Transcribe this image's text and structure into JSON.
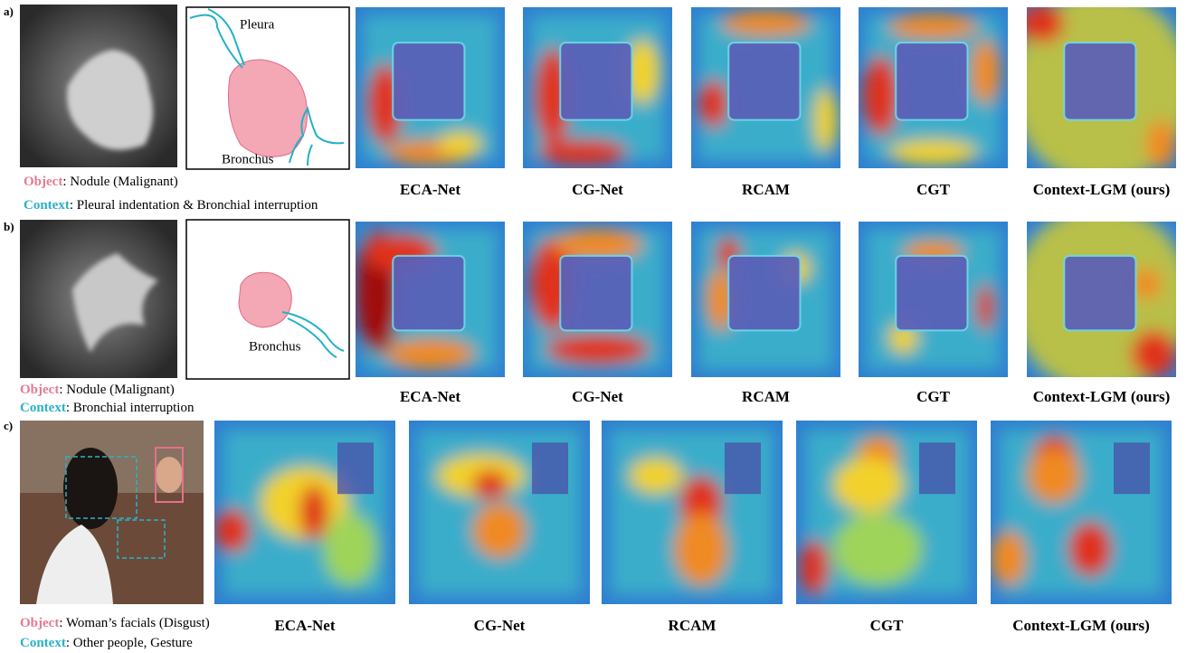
{
  "rows": [
    {
      "label": "a)",
      "object_key": "Object",
      "object_text": ": Nodule (Malignant)",
      "context_key": "Context",
      "context_text": ": Pleural indentation  & Bronchial interruption",
      "diagram_labels": [
        "Pleura",
        "Bronchus"
      ],
      "methods": [
        "ECA-Net",
        "CG-Net",
        "RCAM",
        "CGT",
        "Context-LGM (ours)"
      ]
    },
    {
      "label": "b)",
      "object_key": "Object",
      "object_text": ": Nodule (Malignant)",
      "context_key": "Context",
      "context_text": ": Bronchial  interruption",
      "diagram_labels": [
        "Bronchus"
      ],
      "methods": [
        "ECA-Net",
        "CG-Net",
        "RCAM",
        "CGT",
        "Context-LGM (ours)"
      ]
    },
    {
      "label": "c)",
      "object_key": "Object",
      "object_text": ": Woman’s facials (Disgust)",
      "context_key": "Context",
      "context_text": ": Other people, Gesture",
      "methods": [
        "ECA-Net",
        "CG-Net",
        "RCAM",
        "CGT",
        "Context-LGM (ours)"
      ]
    }
  ]
}
